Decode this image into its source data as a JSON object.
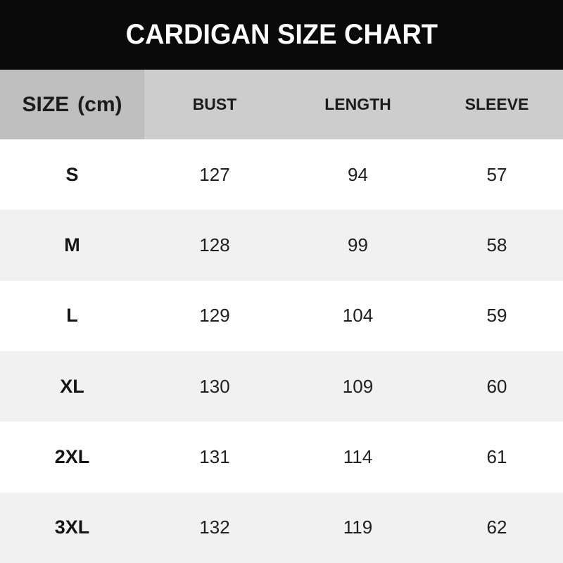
{
  "title": "CARDIGAN SIZE CHART",
  "header": {
    "size_label": "SIZE",
    "size_unit": "(cm)"
  },
  "colors": {
    "banner_bg": "#0a0a0a",
    "banner_text": "#ffffff",
    "header_size_cell_bg": "#bfbfbf",
    "header_row_bg": "#cdcdcd",
    "row_stripe": "#f1f1f1",
    "row_white": "#ffffff",
    "text": "#202020"
  },
  "chart_data": {
    "type": "table",
    "title": "CARDIGAN SIZE CHART",
    "unit": "cm",
    "columns": [
      "SIZE (cm)",
      "BUST",
      "LENGTH",
      "SLEEVE"
    ],
    "rows": [
      [
        "S",
        127,
        94,
        57
      ],
      [
        "M",
        128,
        99,
        58
      ],
      [
        "L",
        129,
        104,
        59
      ],
      [
        "XL",
        130,
        109,
        60
      ],
      [
        "2XL",
        131,
        114,
        61
      ],
      [
        "3XL",
        132,
        119,
        62
      ]
    ]
  }
}
